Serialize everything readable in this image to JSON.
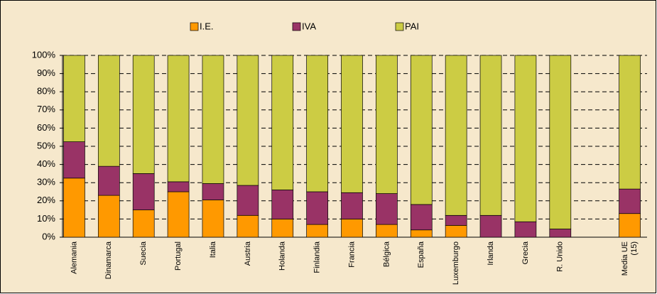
{
  "chart_data": {
    "type": "stacked_bar",
    "categories": [
      "Alemania",
      "Dinamarca",
      "Suecia",
      "Portugal",
      "Italia",
      "Austria",
      "Holanda",
      "Finlandia",
      "Francia",
      "Bélgica",
      "España",
      "Luxemburgo",
      "Irlanda",
      "Grecia",
      "R. Unido",
      null,
      "Media UE (15)"
    ],
    "series": [
      {
        "name": "I.E.",
        "color": "#ff9900",
        "values": [
          32.5,
          23,
          15,
          25,
          20.5,
          12,
          10,
          7,
          10,
          7,
          4,
          6.5,
          0,
          0,
          0,
          null,
          13
        ]
      },
      {
        "name": "IVA",
        "color": "#993366",
        "values": [
          20,
          16,
          20,
          5.5,
          9,
          16.5,
          16,
          18,
          14.5,
          17,
          14,
          5.5,
          12,
          8.5,
          4.5,
          null,
          13.5
        ]
      },
      {
        "name": "PAI",
        "color": "#cccc44",
        "values": [
          47.5,
          61,
          65,
          69.5,
          70.5,
          71.5,
          74,
          75,
          75.5,
          76,
          82,
          88,
          88,
          91.5,
          95.5,
          null,
          73.5
        ]
      }
    ],
    "ylim": [
      0,
      100
    ],
    "yticks": [
      {
        "value": 0,
        "label": "0%"
      },
      {
        "value": 10,
        "label": "10%"
      },
      {
        "value": 20,
        "label": "20%"
      },
      {
        "value": 30,
        "label": "30%"
      },
      {
        "value": 40,
        "label": "40%"
      },
      {
        "value": 50,
        "label": "50%"
      },
      {
        "value": 60,
        "label": "60%"
      },
      {
        "value": 70,
        "label": "70%"
      },
      {
        "value": 80,
        "label": "80%"
      },
      {
        "value": 90,
        "label": "90%"
      },
      {
        "value": 100,
        "label": "100%"
      }
    ],
    "grid": true,
    "legend": "top"
  }
}
